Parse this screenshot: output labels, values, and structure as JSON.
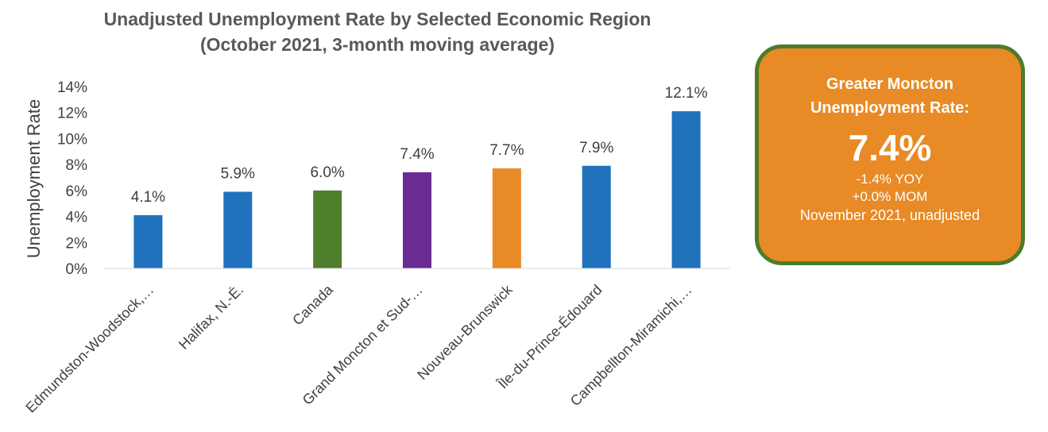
{
  "chart_data": {
    "type": "bar",
    "title": "Unadjusted Unemployment Rate by Selected Economic Region (October 2021, 3-month moving average)",
    "ylabel": "Unemployment Rate",
    "xlabel": "",
    "ylim": [
      0,
      14
    ],
    "yticks": [
      "0%",
      "2%",
      "4%",
      "6%",
      "8%",
      "10%",
      "12%",
      "14%"
    ],
    "grid": false,
    "legend": "none",
    "categories": [
      "Edmundston-Woodstock,…",
      "Halifax, N.-É.",
      "Canada",
      "Grand Moncton et Sud-…",
      "Nouveau-Brunswick",
      "Île-du-Prince-Édouard",
      "Campbellton-Miramichi,…"
    ],
    "values": [
      4.1,
      5.9,
      6.0,
      7.4,
      7.7,
      7.9,
      12.1
    ],
    "value_labels": [
      "4.1%",
      "5.9%",
      "6.0%",
      "7.4%",
      "7.7%",
      "7.9%",
      "12.1%"
    ],
    "colors": [
      "#1f72bb",
      "#1f72bb",
      "#4e7f2c",
      "#6a2c91",
      "#e88a25",
      "#1f72bb",
      "#1f72bb"
    ]
  },
  "callout": {
    "heading_line1": "Greater Moncton",
    "heading_line2": "Unemployment Rate:",
    "value": "7.4%",
    "yoy": "-1.4% YOY",
    "mom": "+0.0% MOM",
    "period": "November 2021, unadjusted",
    "fill_color": "#e88a25",
    "border_color": "#4e7b2b"
  }
}
